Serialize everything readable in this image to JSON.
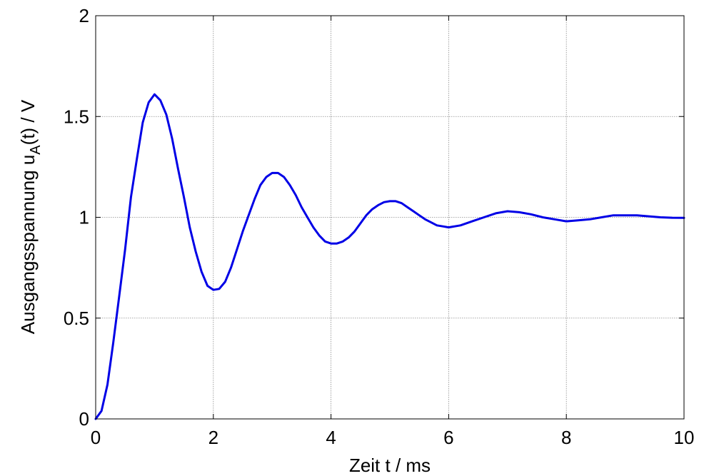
{
  "chart_data": {
    "type": "line",
    "xlabel": "Zeit t / ms",
    "ylabel_parts": {
      "main": "Ausgangsspannung u",
      "sub": "A",
      "rest": "(t) / V"
    },
    "xlim": [
      0,
      10
    ],
    "ylim": [
      0,
      2
    ],
    "xticks": [
      0,
      2,
      4,
      6,
      8,
      10
    ],
    "yticks": [
      0,
      0.5,
      1,
      1.5,
      2
    ],
    "xtick_labels": [
      "0",
      "2",
      "4",
      "6",
      "8",
      "10"
    ],
    "ytick_labels": [
      "0",
      "0.5",
      "1",
      "1.5",
      "2"
    ],
    "grid": true,
    "line_color": "#0000e6",
    "series": [
      {
        "x": [
          0,
          0.1,
          0.2,
          0.3,
          0.4,
          0.5,
          0.6,
          0.7,
          0.8,
          0.9,
          1.0,
          1.1,
          1.2,
          1.3,
          1.4,
          1.5,
          1.6,
          1.7,
          1.8,
          1.9,
          2.0,
          2.1,
          2.2,
          2.3,
          2.4,
          2.5,
          2.6,
          2.7,
          2.8,
          2.9,
          3.0,
          3.1,
          3.2,
          3.3,
          3.4,
          3.5,
          3.6,
          3.7,
          3.8,
          3.9,
          4.0,
          4.1,
          4.2,
          4.3,
          4.4,
          4.5,
          4.6,
          4.7,
          4.8,
          4.9,
          5.0,
          5.1,
          5.2,
          5.3,
          5.4,
          5.5,
          5.6,
          5.7,
          5.8,
          5.9,
          6.0,
          6.2,
          6.4,
          6.6,
          6.8,
          7.0,
          7.2,
          7.4,
          7.6,
          7.8,
          8.0,
          8.2,
          8.4,
          8.6,
          8.8,
          9.0,
          9.2,
          9.4,
          9.6,
          9.8,
          10.0
        ],
        "y": [
          0,
          0.04,
          0.17,
          0.38,
          0.61,
          0.84,
          1.1,
          1.29,
          1.47,
          1.57,
          1.61,
          1.58,
          1.51,
          1.39,
          1.24,
          1.1,
          0.95,
          0.83,
          0.73,
          0.66,
          0.64,
          0.645,
          0.68,
          0.75,
          0.84,
          0.93,
          1.01,
          1.09,
          1.16,
          1.2,
          1.22,
          1.22,
          1.2,
          1.16,
          1.11,
          1.05,
          1.0,
          0.95,
          0.91,
          0.88,
          0.87,
          0.87,
          0.88,
          0.9,
          0.93,
          0.97,
          1.01,
          1.04,
          1.06,
          1.075,
          1.08,
          1.08,
          1.07,
          1.05,
          1.03,
          1.01,
          0.99,
          0.975,
          0.96,
          0.955,
          0.95,
          0.96,
          0.98,
          1.0,
          1.02,
          1.03,
          1.025,
          1.015,
          1.0,
          0.99,
          0.98,
          0.985,
          0.99,
          1.0,
          1.01,
          1.01,
          1.01,
          1.005,
          1.0,
          0.998,
          0.997
        ]
      }
    ]
  }
}
